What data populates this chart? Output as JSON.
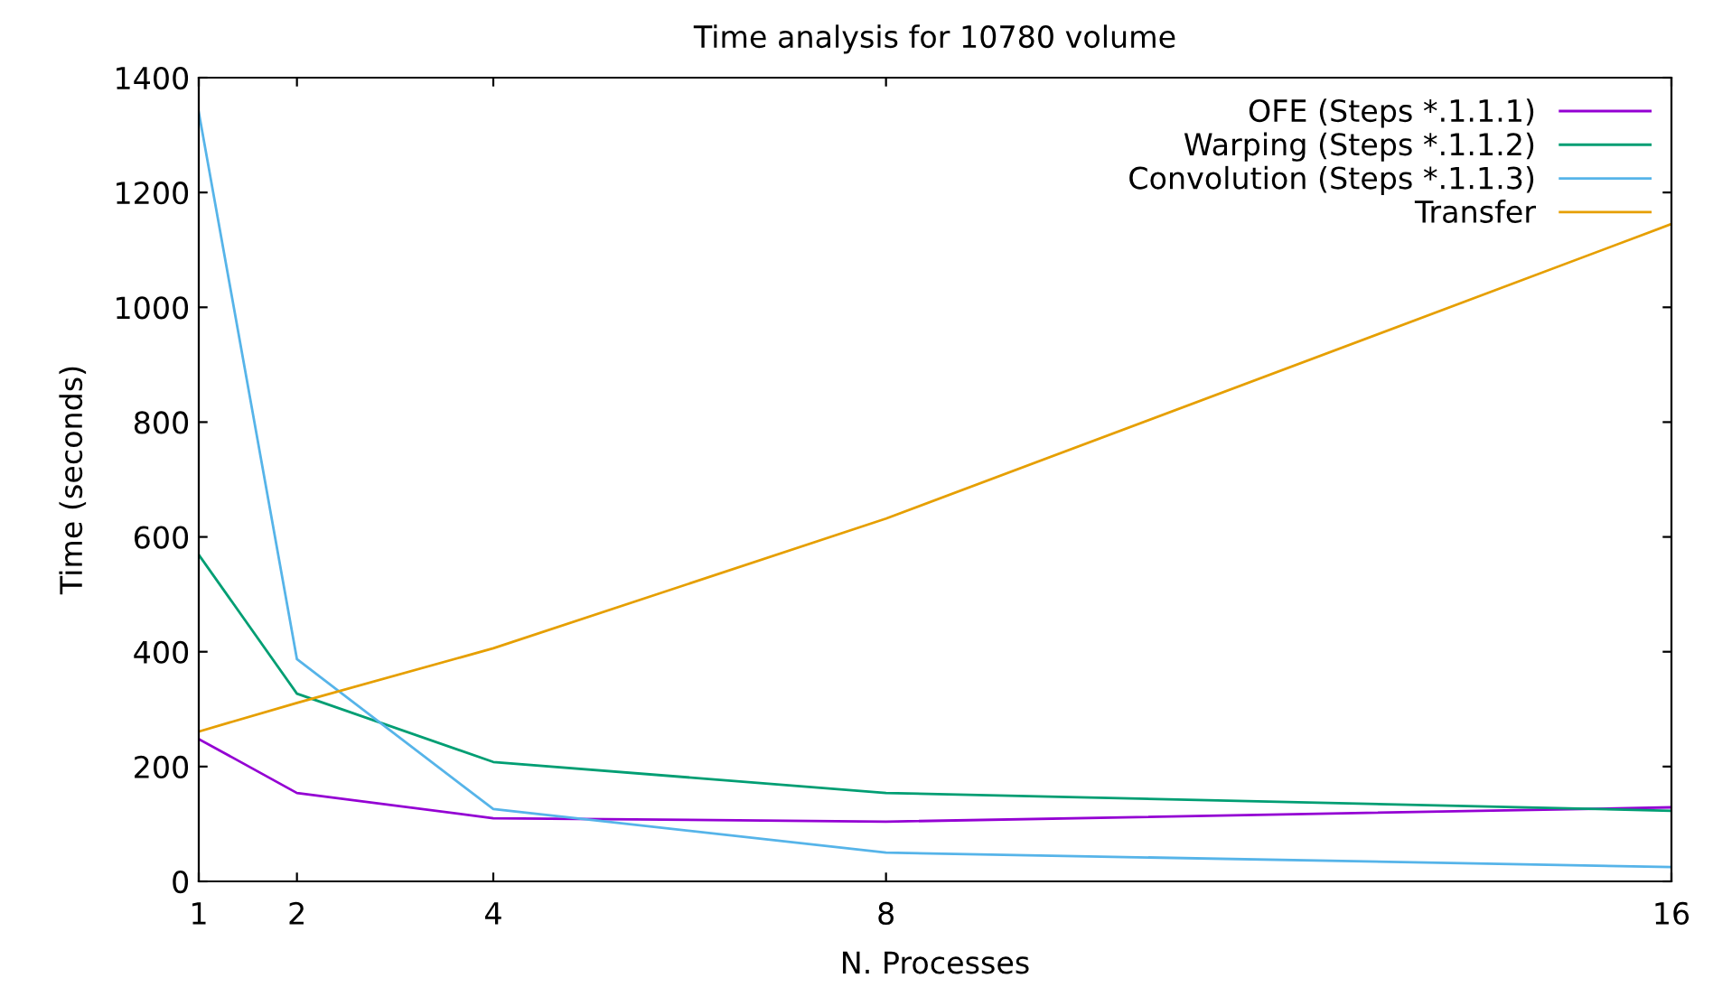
{
  "chart_data": {
    "type": "line",
    "title": "Time analysis for 10780 volume",
    "xlabel": "N. Processes",
    "ylabel": "Time (seconds)",
    "x": [
      1,
      2,
      4,
      8,
      16
    ],
    "series": [
      {
        "name": "OFE (Steps *.1.1.1)",
        "color": "#9400d3",
        "values": [
          248,
          154,
          110,
          104,
          129
        ]
      },
      {
        "name": "Warping (Steps *.1.1.2)",
        "color": "#009e73",
        "values": [
          569,
          327,
          208,
          154,
          123
        ]
      },
      {
        "name": "Convolution (Steps *.1.1.3)",
        "color": "#56b4e9",
        "values": [
          1340,
          387,
          126,
          50,
          25
        ]
      },
      {
        "name": "Transfer",
        "color": "#e69f00",
        "values": [
          261,
          311,
          406,
          632,
          1145
        ]
      }
    ],
    "xlim": [
      1,
      16
    ],
    "xticks": [
      1,
      2,
      4,
      8,
      16
    ],
    "ylim": [
      0,
      1400
    ],
    "yticks": [
      0,
      200,
      400,
      600,
      800,
      1000,
      1200,
      1400
    ],
    "grid": false,
    "legend": "top right",
    "marker": "none",
    "line_style": "solid"
  }
}
